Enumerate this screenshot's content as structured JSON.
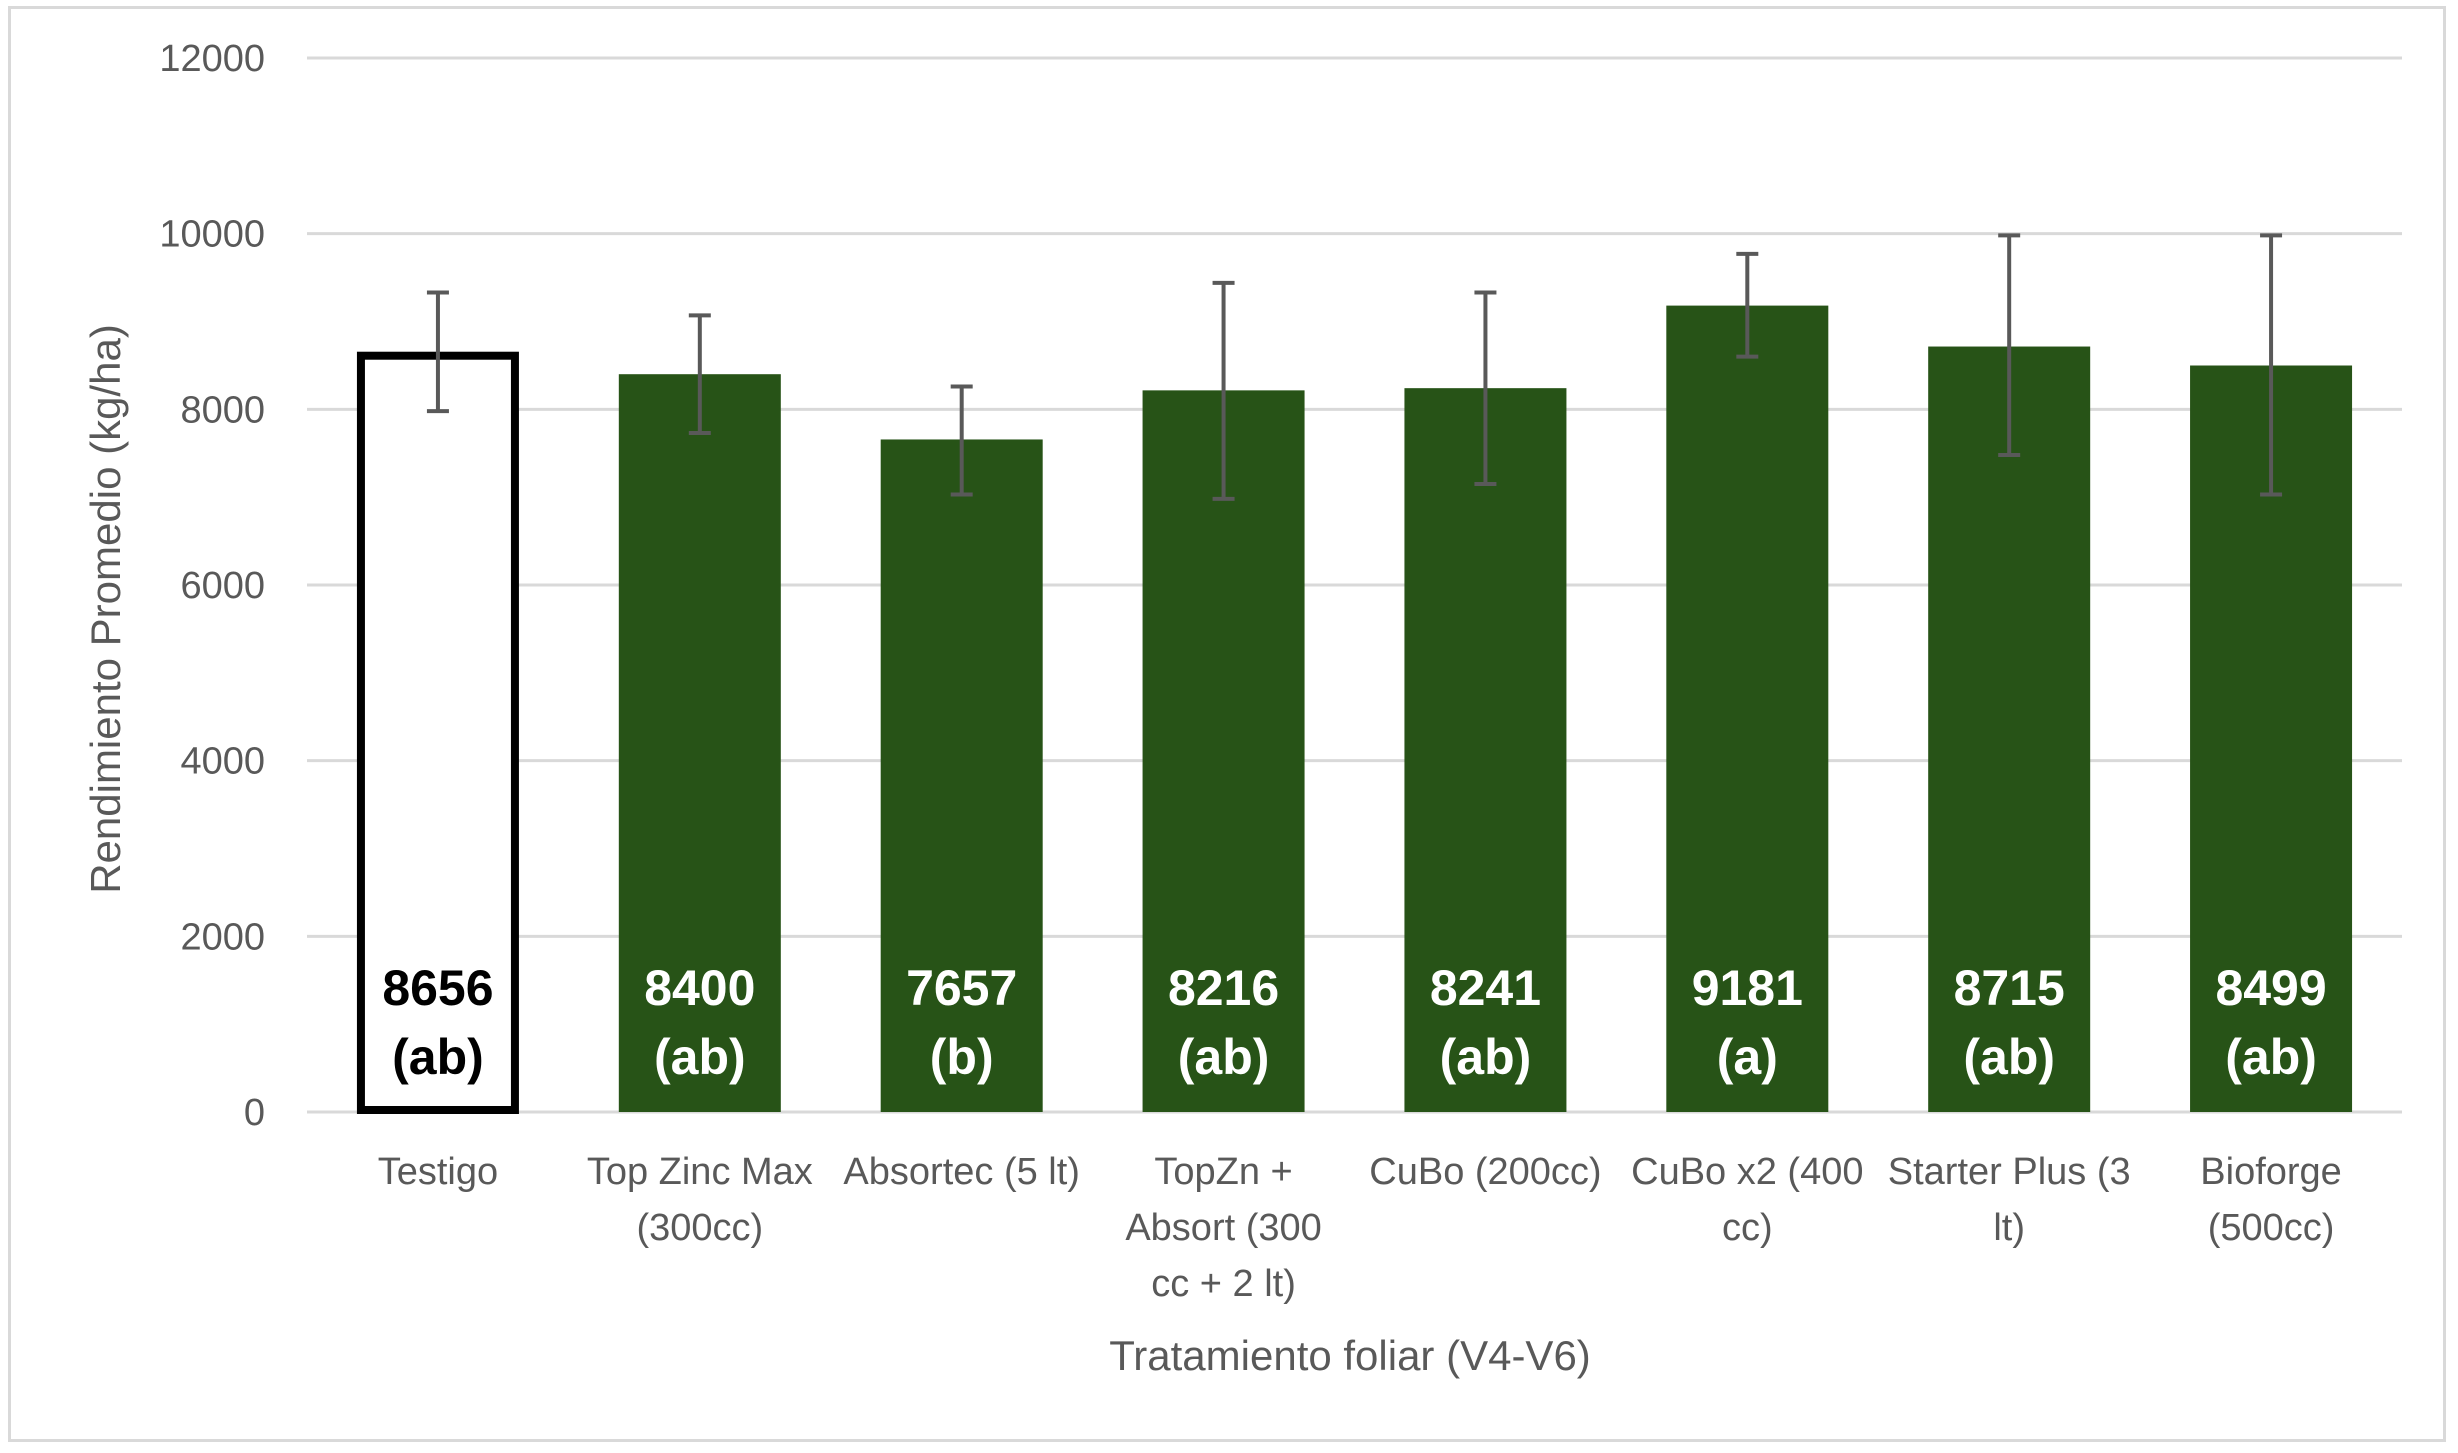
{
  "chart_data": {
    "type": "bar",
    "title": "",
    "xlabel": "Tratamiento foliar (V4-V6)",
    "ylabel": "Rendimiento Promedio (kg/ha)",
    "ylim": [
      0,
      12000
    ],
    "yticks": [
      0,
      2000,
      4000,
      6000,
      8000,
      10000,
      12000
    ],
    "grid": true,
    "legend": "none",
    "categories": [
      [
        "Testigo"
      ],
      [
        "Top Zinc Max",
        "(300cc)"
      ],
      [
        "Absortec (5 lt)"
      ],
      [
        "TopZn +",
        "Absort (300",
        "cc + 2 lt)"
      ],
      [
        "CuBo (200cc)"
      ],
      [
        "CuBo x2 (400",
        "cc)"
      ],
      [
        "Starter Plus (3",
        "lt)"
      ],
      [
        "Bioforge",
        "(500cc)"
      ]
    ],
    "values": [
      8656,
      8400,
      7657,
      8216,
      8241,
      9181,
      8715,
      8499
    ],
    "error_low": [
      7980,
      7730,
      7030,
      6980,
      7150,
      8600,
      7480,
      7030
    ],
    "error_high": [
      9330,
      9070,
      8260,
      9440,
      9330,
      9770,
      9980,
      9980
    ],
    "value_labels": [
      "8656",
      "8400",
      "7657",
      "8216",
      "8241",
      "9181",
      "8715",
      "8499"
    ],
    "group_labels": [
      "(ab)",
      "(ab)",
      "(b)",
      "(ab)",
      "(ab)",
      "(a)",
      "(ab)",
      "(ab)"
    ],
    "bar_styles": [
      "outline",
      "filled",
      "filled",
      "filled",
      "filled",
      "filled",
      "filled",
      "filled"
    ],
    "colors": {
      "fill": "#275317",
      "outline": "#000000",
      "outline_label": "#000000",
      "filled_label": "#ffffff"
    }
  }
}
